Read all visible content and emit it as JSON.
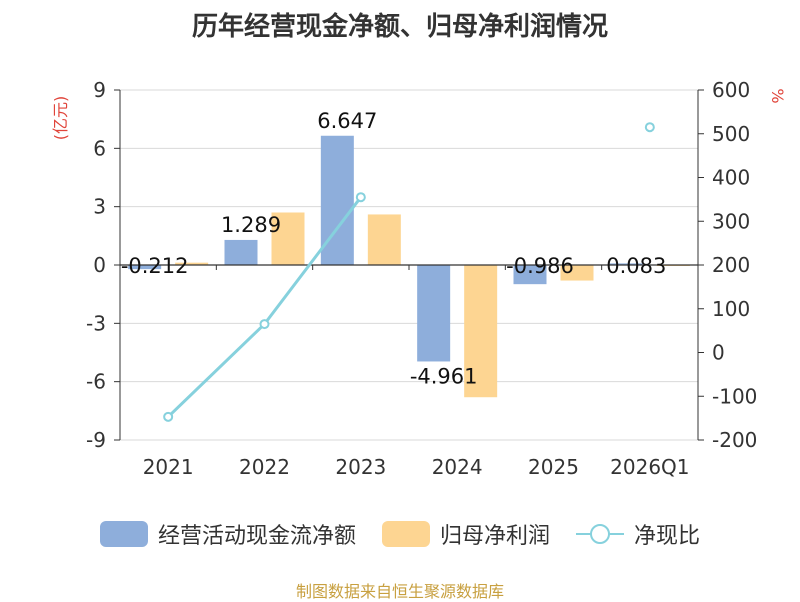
{
  "title": "历年经营现金净额、归母净利润情况",
  "source": "制图数据来自恒生聚源数据库",
  "colors": {
    "bar1": "#8eaedb",
    "bar2": "#fdd592",
    "line": "#86d1dd",
    "axis": "#333333",
    "grid": "#d9d9d9",
    "unit_left": "#e0443a",
    "unit_right": "#e0443a"
  },
  "chart_data": {
    "type": "bar",
    "categories": [
      "2021",
      "2022",
      "2023",
      "2024",
      "2025",
      "2026Q1"
    ],
    "series": [
      {
        "name": "经营活动现金流净额",
        "type": "bar",
        "axis": "left",
        "values": [
          -0.212,
          1.289,
          6.647,
          -4.961,
          -0.986,
          0.083
        ]
      },
      {
        "name": "归母净利润",
        "type": "bar",
        "axis": "left",
        "values": [
          0.12,
          2.7,
          2.6,
          -6.8,
          -0.8,
          0.0
        ]
      },
      {
        "name": "净现比",
        "type": "line",
        "axis": "right",
        "values": [
          -147,
          65,
          355,
          null,
          null,
          515
        ]
      }
    ],
    "data_labels": [
      "-0.212",
      "1.289",
      "6.647",
      "-4.961",
      "-0.986",
      "0.083"
    ],
    "y_left": {
      "label": "(亿元)",
      "min": -9,
      "max": 9,
      "ticks": [
        "-9",
        "-6",
        "-3",
        "0",
        "3",
        "6",
        "9"
      ]
    },
    "y_right": {
      "label": "%",
      "min": -200,
      "max": 600,
      "ticks": [
        "-200",
        "-100",
        "0",
        "100",
        "200",
        "300",
        "400",
        "500",
        "600"
      ]
    },
    "grid": true,
    "legend_position": "bottom"
  }
}
